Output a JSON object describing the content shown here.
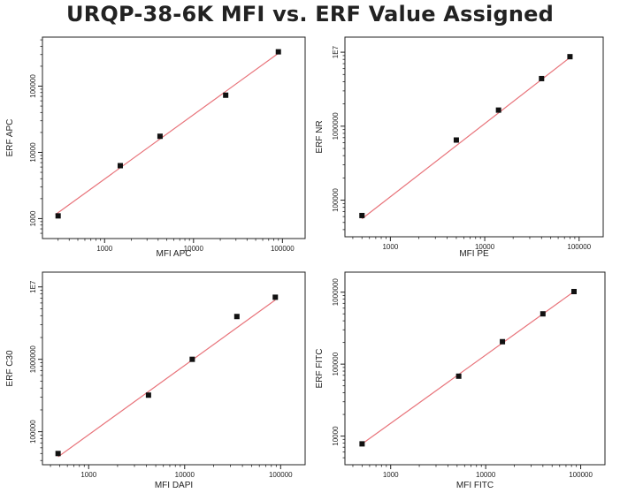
{
  "title": "URQP-38-6K MFI vs. ERF Value Assigned",
  "colors": {
    "fit_line": "#e8737a",
    "marker": "#111111",
    "axis": "#222222"
  },
  "chart_data": [
    {
      "type": "scatter",
      "xlabel": "MFI APC",
      "ylabel": "ERF APC",
      "x_scale": "log",
      "y_scale": "log",
      "xlim": [
        200,
        180000
      ],
      "ylim": [
        500,
        550000
      ],
      "x_ticks": [
        {
          "value": 1000,
          "label": "1000"
        },
        {
          "value": 10000,
          "label": "10000"
        },
        {
          "value": 100000,
          "label": "100000"
        }
      ],
      "y_ticks": [
        {
          "value": 1000,
          "label": "1000"
        },
        {
          "value": 10000,
          "label": "10000"
        },
        {
          "value": 100000,
          "label": "100000"
        }
      ],
      "points": [
        [
          300,
          1100
        ],
        [
          1500,
          6300
        ],
        [
          4200,
          17500
        ],
        [
          23000,
          73000
        ],
        [
          90000,
          330000
        ]
      ],
      "fit_line": [
        [
          280,
          1150
        ],
        [
          92000,
          320000
        ]
      ]
    },
    {
      "type": "scatter",
      "xlabel": "MFI PE",
      "ylabel": "ERF NR",
      "x_scale": "log",
      "y_scale": "log",
      "xlim": [
        330,
        180000
      ],
      "ylim": [
        32000,
        16000000
      ],
      "x_ticks": [
        {
          "value": 1000,
          "label": "1000"
        },
        {
          "value": 10000,
          "label": "10000"
        },
        {
          "value": 100000,
          "label": "100000"
        }
      ],
      "y_ticks": [
        {
          "value": 100000,
          "label": "100000"
        },
        {
          "value": 1000000,
          "label": "1000000"
        },
        {
          "value": 10000000,
          "label": "1E7"
        }
      ],
      "points": [
        [
          500,
          62000
        ],
        [
          5000,
          650000
        ],
        [
          14000,
          1650000
        ],
        [
          40000,
          4400000
        ],
        [
          80000,
          8700000
        ]
      ],
      "fit_line": [
        [
          500,
          56000
        ],
        [
          85000,
          9000000
        ]
      ]
    },
    {
      "type": "scatter",
      "xlabel": "MFI DAPI",
      "ylabel": "ERF C30",
      "x_scale": "log",
      "y_scale": "log",
      "xlim": [
        330,
        180000
      ],
      "ylim": [
        35000,
        16000000
      ],
      "x_ticks": [
        {
          "value": 1000,
          "label": "1000"
        },
        {
          "value": 10000,
          "label": "10000"
        },
        {
          "value": 100000,
          "label": "100000"
        }
      ],
      "y_ticks": [
        {
          "value": 100000,
          "label": "100000"
        },
        {
          "value": 1000000,
          "label": "1000000"
        },
        {
          "value": 10000000,
          "label": "1E7"
        }
      ],
      "points": [
        [
          480,
          50000
        ],
        [
          4200,
          320000
        ],
        [
          12000,
          1000000
        ],
        [
          35000,
          3900000
        ],
        [
          88000,
          7200000
        ]
      ],
      "fit_line": [
        [
          480,
          45000
        ],
        [
          88000,
          6600000
        ]
      ]
    },
    {
      "type": "scatter",
      "xlabel": "MFI FITC",
      "ylabel": "ERF FITC",
      "x_scale": "log",
      "y_scale": "log",
      "xlim": [
        330,
        180000
      ],
      "ylim": [
        4000,
        1900000
      ],
      "x_ticks": [
        {
          "value": 1000,
          "label": "1000"
        },
        {
          "value": 10000,
          "label": "10000"
        },
        {
          "value": 100000,
          "label": "100000"
        }
      ],
      "y_ticks": [
        {
          "value": 10000,
          "label": "10000"
        },
        {
          "value": 100000,
          "label": "100000"
        },
        {
          "value": 1000000,
          "label": "1000000"
        }
      ],
      "points": [
        [
          500,
          7800
        ],
        [
          5200,
          68000
        ],
        [
          15000,
          205000
        ],
        [
          40000,
          500000
        ],
        [
          85000,
          1020000
        ]
      ],
      "fit_line": [
        [
          500,
          7800
        ],
        [
          85000,
          1020000
        ]
      ]
    }
  ]
}
